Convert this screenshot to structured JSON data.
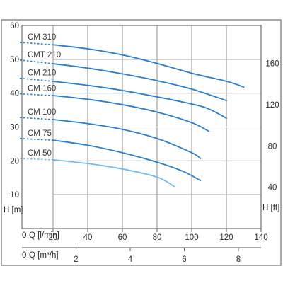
{
  "chart_data": {
    "type": "line",
    "ylabel_left": "H [m]",
    "ylabel_right": "H [ft]",
    "xlabel_top": "Q [l/min]",
    "xlabel_bottom": "Q [m³/h]",
    "y_left": {
      "min": 0,
      "max": 60,
      "ticks": [
        0,
        10,
        20,
        30,
        40,
        50,
        60
      ]
    },
    "y_right": {
      "min": 0,
      "max": 196.85,
      "ticks": [
        40,
        80,
        120,
        160
      ]
    },
    "x_top": {
      "min": 0,
      "max": 140,
      "ticks": [
        20,
        40,
        60,
        80,
        100,
        120,
        140
      ]
    },
    "x_bottom": {
      "min": 0,
      "max": 8.4,
      "ticks": [
        2,
        4,
        6,
        8
      ]
    },
    "x_origin_label": "0",
    "grid": true,
    "series": [
      {
        "name": "CM 310",
        "x": [
          0,
          20,
          40,
          60,
          80,
          100,
          120,
          130
        ],
        "y": [
          55,
          54.3,
          53.1,
          51.3,
          48.8,
          45.9,
          43.5,
          41.8
        ],
        "color": "#2a7fc8"
      },
      {
        "name": "CMT 210",
        "x": [
          0,
          20,
          40,
          60,
          80,
          100,
          120
        ],
        "y": [
          49.8,
          48.7,
          47.4,
          45.7,
          43.7,
          41.2,
          37.8
        ],
        "color": "#2a7fc8"
      },
      {
        "name": "CM 210",
        "x": [
          0,
          20,
          40,
          60,
          80,
          100,
          110,
          120
        ],
        "y": [
          44.4,
          43.5,
          42.3,
          40.8,
          38.9,
          36.8,
          35.3,
          32.6
        ],
        "color": "#2a7fc8"
      },
      {
        "name": "CM 160",
        "x": [
          0,
          20,
          40,
          60,
          80,
          100,
          110
        ],
        "y": [
          39.8,
          39.3,
          38.2,
          36.6,
          34.4,
          31.3,
          28.7
        ],
        "color": "#2a7fc8"
      },
      {
        "name": "CM 100",
        "x": [
          0,
          20,
          40,
          60,
          80,
          100,
          105
        ],
        "y": [
          32.8,
          32.2,
          31,
          29.3,
          26.6,
          22.4,
          20.7
        ],
        "color": "#2a7fc8"
      },
      {
        "name": "CM 75",
        "x": [
          0,
          20,
          40,
          60,
          80,
          95,
          105
        ],
        "y": [
          26.6,
          26.1,
          24.6,
          22.4,
          19.6,
          16.9,
          14.2
        ],
        "color": "#2a7fc8"
      },
      {
        "name": "CM 50",
        "x": [
          0,
          20,
          40,
          60,
          80,
          90
        ],
        "y": [
          20.7,
          20.3,
          19.2,
          17.6,
          15.2,
          12.4
        ],
        "color": "#72bde8"
      }
    ]
  }
}
